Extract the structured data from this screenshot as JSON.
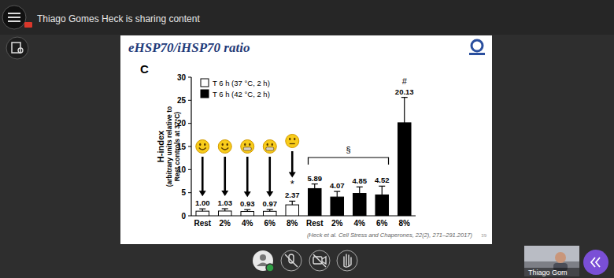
{
  "screen": {
    "banner": "Thiago Gomes Heck is sharing content",
    "slide_title": "eHSP70/iHSP70 ratio",
    "panel": "C",
    "citation": "(Heck et al. Cell Stress and Chaperones, 22(2), 271–291.2017)",
    "page": "39",
    "participant": "Thiago Gom"
  },
  "chart_data": {
    "type": "bar",
    "y_label": [
      "H-index",
      "(arbitrary units relative to",
      "Rest controls at 37°C)"
    ],
    "categories": [
      "Rest",
      "2%",
      "4%",
      "6%",
      "8%",
      "Rest",
      "2%",
      "4%",
      "6%",
      "8%"
    ],
    "series": [
      {
        "name": "T 6 h (37 °C, 2 h)",
        "color": "#ffffff",
        "values": [
          1.0,
          1.03,
          0.93,
          0.97,
          2.37,
          null,
          null,
          null,
          null,
          null
        ],
        "value_labels": [
          "1.00",
          "1.03",
          "0.93",
          "0.97",
          "2.37",
          null,
          null,
          null,
          null,
          null
        ],
        "errors": [
          0.5,
          0.5,
          0.4,
          0.4,
          0.8,
          null,
          null,
          null,
          null,
          null
        ]
      },
      {
        "name": "T 6 h (42 °C, 2 h)",
        "color": "#000000",
        "values": [
          null,
          null,
          null,
          null,
          null,
          5.89,
          4.07,
          4.85,
          4.52,
          20.13
        ],
        "errors": [
          null,
          null,
          null,
          null,
          null,
          1.0,
          1.2,
          1.4,
          1.9,
          5.5
        ]
      }
    ],
    "annotations": [
      "*",
      "§",
      "#"
    ],
    "ylim": [
      0,
      30
    ],
    "yticks": [
      0,
      5,
      10,
      15,
      20,
      25,
      30
    ],
    "grid": false,
    "data_labels": true,
    "legend": "top-left"
  }
}
